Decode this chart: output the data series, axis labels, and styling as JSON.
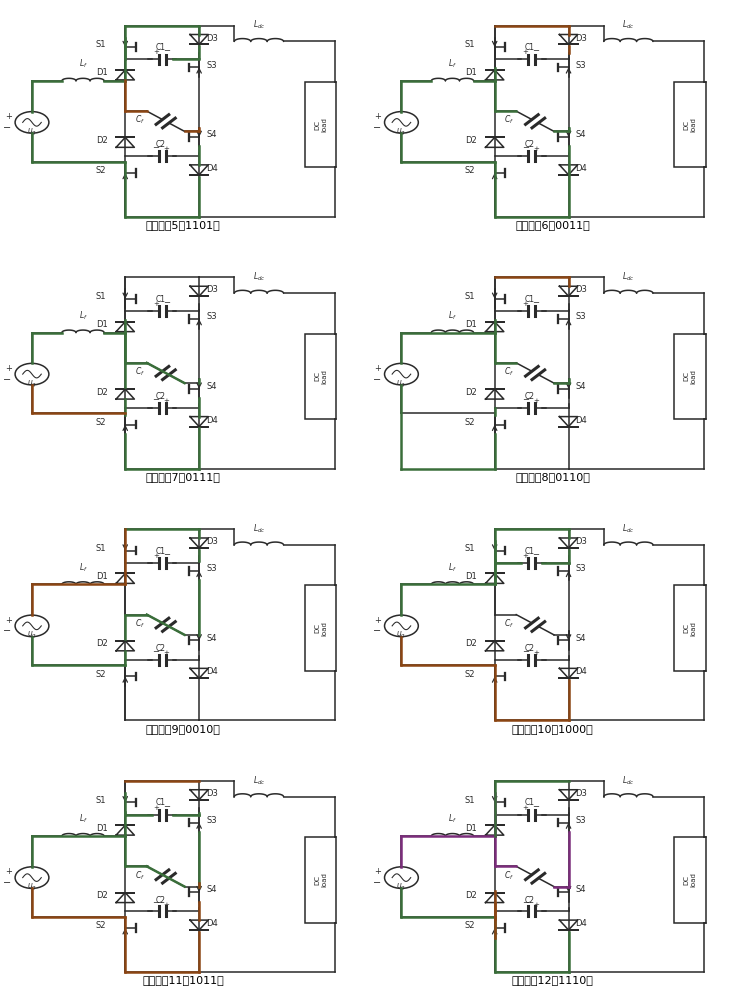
{
  "panels": [
    {
      "label": "运行状态5（1101）",
      "active_color": "#3a6e3a",
      "secondary_color": "#8b4513"
    },
    {
      "label": "运行状态6（0011）",
      "active_color": "#3a6e3a",
      "secondary_color": "#8b4513"
    },
    {
      "label": "运行状态7（0111）",
      "active_color": "#3a6e3a",
      "secondary_color": "#8b4513"
    },
    {
      "label": "运行状态8（0110）",
      "active_color": "#3a6e3a",
      "secondary_color": "#8b4513"
    },
    {
      "label": "运行状态9（0010）",
      "active_color": "#3a6e3a",
      "secondary_color": "#8b4513"
    },
    {
      "label": "运行状态10（1000）",
      "active_color": "#3a6e3a",
      "secondary_color": "#8b4513"
    },
    {
      "label": "运行状态11（1011）",
      "active_color": "#3a6e3a",
      "secondary_color": "#8b4513"
    },
    {
      "label": "运行状态12（1110）",
      "active_color": "#3a6e3a",
      "secondary_color": "#8b4513"
    }
  ],
  "line_color": "#2a2a2a",
  "background_color": "#ffffff",
  "label_fontsize": 8
}
